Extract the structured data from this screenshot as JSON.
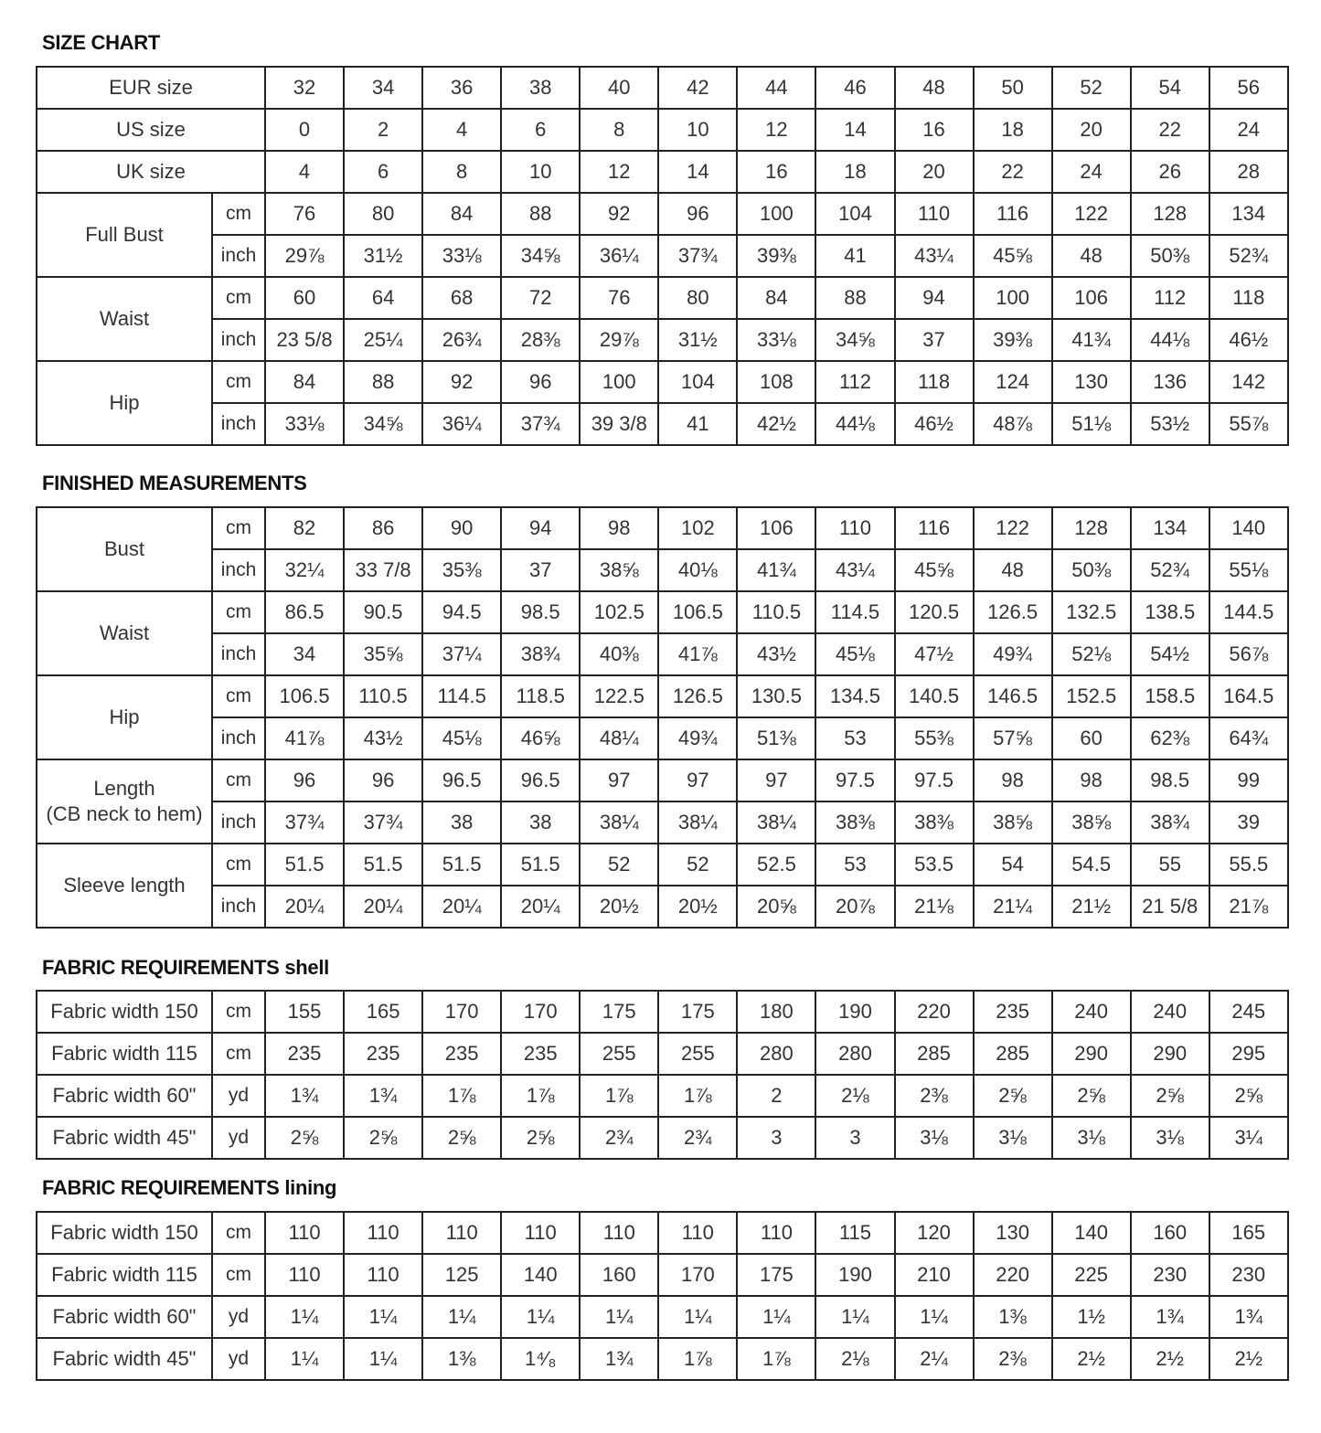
{
  "sections": [
    {
      "title": "SIZE CHART",
      "groups": [
        {
          "label": "EUR size",
          "rows": [
            {
              "unit": null,
              "values": [
                "32",
                "34",
                "36",
                "38",
                "40",
                "42",
                "44",
                "46",
                "48",
                "50",
                "52",
                "54",
                "56"
              ]
            }
          ]
        },
        {
          "label": "US size",
          "rows": [
            {
              "unit": null,
              "values": [
                "0",
                "2",
                "4",
                "6",
                "8",
                "10",
                "12",
                "14",
                "16",
                "18",
                "20",
                "22",
                "24"
              ]
            }
          ]
        },
        {
          "label": "UK size",
          "rows": [
            {
              "unit": null,
              "values": [
                "4",
                "6",
                "8",
                "10",
                "12",
                "14",
                "16",
                "18",
                "20",
                "22",
                "24",
                "26",
                "28"
              ]
            }
          ]
        },
        {
          "label": "Full Bust",
          "rows": [
            {
              "unit": "cm",
              "values": [
                "76",
                "80",
                "84",
                "88",
                "92",
                "96",
                "100",
                "104",
                "110",
                "116",
                "122",
                "128",
                "134"
              ]
            },
            {
              "unit": "inch",
              "values": [
                "29⅞",
                "31½",
                "33⅛",
                "34⅝",
                "36¼",
                "37¾",
                "39⅜",
                "41",
                "43¼",
                "45⅝",
                "48",
                "50⅜",
                "52¾"
              ]
            }
          ]
        },
        {
          "label": "Waist",
          "rows": [
            {
              "unit": "cm",
              "values": [
                "60",
                "64",
                "68",
                "72",
                "76",
                "80",
                "84",
                "88",
                "94",
                "100",
                "106",
                "112",
                "118"
              ]
            },
            {
              "unit": "inch",
              "values": [
                "23 5/8",
                "25¼",
                "26¾",
                "28⅜",
                "29⅞",
                "31½",
                "33⅛",
                "34⅝",
                "37",
                "39⅜",
                "41¾",
                "44⅛",
                "46½"
              ]
            }
          ]
        },
        {
          "label": "Hip",
          "rows": [
            {
              "unit": "cm",
              "values": [
                "84",
                "88",
                "92",
                "96",
                "100",
                "104",
                "108",
                "112",
                "118",
                "124",
                "130",
                "136",
                "142"
              ]
            },
            {
              "unit": "inch",
              "values": [
                "33⅛",
                "34⅝",
                "36¼",
                "37¾",
                "39 3/8",
                "41",
                "42½",
                "44⅛",
                "46½",
                "48⅞",
                "51⅛",
                "53½",
                "55⅞"
              ]
            }
          ]
        }
      ]
    },
    {
      "title": "FINISHED MEASUREMENTS",
      "groups": [
        {
          "label": "Bust",
          "rows": [
            {
              "unit": "cm",
              "values": [
                "82",
                "86",
                "90",
                "94",
                "98",
                "102",
                "106",
                "110",
                "116",
                "122",
                "128",
                "134",
                "140"
              ]
            },
            {
              "unit": "inch",
              "values": [
                "32¼",
                "33 7/8",
                "35⅜",
                "37",
                "38⅝",
                "40⅛",
                "41¾",
                "43¼",
                "45⅝",
                "48",
                "50⅜",
                "52¾",
                "55⅛"
              ]
            }
          ]
        },
        {
          "label": "Waist",
          "rows": [
            {
              "unit": "cm",
              "values": [
                "86.5",
                "90.5",
                "94.5",
                "98.5",
                "102.5",
                "106.5",
                "110.5",
                "114.5",
                "120.5",
                "126.5",
                "132.5",
                "138.5",
                "144.5"
              ]
            },
            {
              "unit": "inch",
              "values": [
                "34",
                "35⅝",
                "37¼",
                "38¾",
                "40⅜",
                "41⅞",
                "43½",
                "45⅛",
                "47½",
                "49¾",
                "52⅛",
                "54½",
                "56⅞"
              ]
            }
          ]
        },
        {
          "label": "Hip",
          "rows": [
            {
              "unit": "cm",
              "values": [
                "106.5",
                "110.5",
                "114.5",
                "118.5",
                "122.5",
                "126.5",
                "130.5",
                "134.5",
                "140.5",
                "146.5",
                "152.5",
                "158.5",
                "164.5"
              ]
            },
            {
              "unit": "inch",
              "values": [
                "41⅞",
                "43½",
                "45⅛",
                "46⅝",
                "48¼",
                "49¾",
                "51⅜",
                "53",
                "55⅜",
                "57⅝",
                "60",
                "62⅜",
                "64¾"
              ]
            }
          ]
        },
        {
          "label": "Length\n(CB neck to hem)",
          "rows": [
            {
              "unit": "cm",
              "values": [
                "96",
                "96",
                "96.5",
                "96.5",
                "97",
                "97",
                "97",
                "97.5",
                "97.5",
                "98",
                "98",
                "98.5",
                "99"
              ]
            },
            {
              "unit": "inch",
              "values": [
                "37¾",
                "37¾",
                "38",
                "38",
                "38¼",
                "38¼",
                "38¼",
                "38⅜",
                "38⅜",
                "38⅝",
                "38⅝",
                "38¾",
                "39"
              ]
            }
          ]
        },
        {
          "label": "Sleeve length",
          "rows": [
            {
              "unit": "cm",
              "values": [
                "51.5",
                "51.5",
                "51.5",
                "51.5",
                "52",
                "52",
                "52.5",
                "53",
                "53.5",
                "54",
                "54.5",
                "55",
                "55.5"
              ]
            },
            {
              "unit": "inch",
              "values": [
                "20¼",
                "20¼",
                "20¼",
                "20¼",
                "20½",
                "20½",
                "20⅝",
                "20⅞",
                "21⅛",
                "21¼",
                "21½",
                "21 5/8",
                "21⅞"
              ]
            }
          ]
        }
      ]
    },
    {
      "title": "FABRIC REQUIREMENTS shell",
      "groups": [
        {
          "label": "Fabric width 150",
          "rows": [
            {
              "unit": "cm",
              "values": [
                "155",
                "165",
                "170",
                "170",
                "175",
                "175",
                "180",
                "190",
                "220",
                "235",
                "240",
                "240",
                "245"
              ]
            }
          ]
        },
        {
          "label": "Fabric width 115",
          "rows": [
            {
              "unit": "cm",
              "values": [
                "235",
                "235",
                "235",
                "235",
                "255",
                "255",
                "280",
                "280",
                "285",
                "285",
                "290",
                "290",
                "295"
              ]
            }
          ]
        },
        {
          "label": "Fabric width 60\"",
          "rows": [
            {
              "unit": "yd",
              "values": [
                "1¾",
                "1¾",
                "1⅞",
                "1⅞",
                "1⅞",
                "1⅞",
                "2",
                "2⅛",
                "2⅜",
                "2⅝",
                "2⅝",
                "2⅝",
                "2⅝"
              ]
            }
          ]
        },
        {
          "label": "Fabric width 45\"",
          "rows": [
            {
              "unit": "yd",
              "values": [
                "2⅝",
                "2⅝",
                "2⅝",
                "2⅝",
                "2¾",
                "2¾",
                "3",
                "3",
                "3⅛",
                "3⅛",
                "3⅛",
                "3⅛",
                "3¼"
              ]
            }
          ]
        }
      ]
    },
    {
      "title": "FABRIC REQUIREMENTS lining",
      "groups": [
        {
          "label": "Fabric width 150",
          "rows": [
            {
              "unit": "cm",
              "values": [
                "110",
                "110",
                "110",
                "110",
                "110",
                "110",
                "110",
                "115",
                "120",
                "130",
                "140",
                "160",
                "165"
              ]
            }
          ]
        },
        {
          "label": "Fabric width 115",
          "rows": [
            {
              "unit": "cm",
              "values": [
                "110",
                "110",
                "125",
                "140",
                "160",
                "170",
                "175",
                "190",
                "210",
                "220",
                "225",
                "230",
                "230"
              ]
            }
          ]
        },
        {
          "label": "Fabric width 60\"",
          "rows": [
            {
              "unit": "yd",
              "values": [
                "1¼",
                "1¼",
                "1¼",
                "1¼",
                "1¼",
                "1¼",
                "1¼",
                "1¼",
                "1¼",
                "1⅜",
                "1½",
                "1¾",
                "1¾"
              ]
            }
          ]
        },
        {
          "label": "Fabric width 45\"",
          "rows": [
            {
              "unit": "yd",
              "values": [
                "1¼",
                "1¼",
                "1⅜",
                "1⁴⁄₈",
                "1¾",
                "1⅞",
                "1⅞",
                "2⅛",
                "2¼",
                "2⅜",
                "2½",
                "2½",
                "2½"
              ]
            }
          ]
        }
      ]
    }
  ]
}
